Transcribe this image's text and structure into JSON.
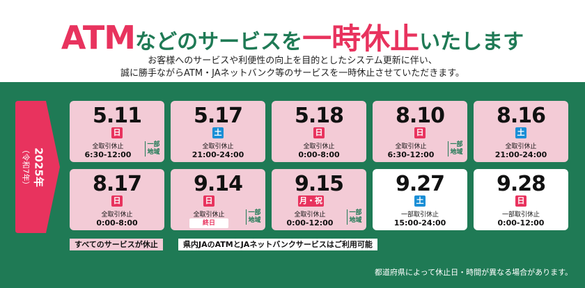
{
  "headline": {
    "atm": "ATM",
    "mid": "などのサービスを",
    "stop": "一時休止",
    "end": "いたします"
  },
  "subtext": {
    "line1": "お客様へのサービスや利便性の向上を目的としたシステム更新に伴い、",
    "line2": "誠に勝手ながらATM・JAネットバンク等のサービスを一時休止させていただきます。"
  },
  "year": {
    "main": "2025年",
    "era": "（令和7年）"
  },
  "colors": {
    "brand_pink": "#e8335e",
    "brand_green": "#1f7a55",
    "card_pink": "#f3cbd6",
    "saturday_blue": "#1b8fd6"
  },
  "cards": [
    {
      "date": "5.11",
      "dow": "日",
      "status": "全取引休止",
      "time": "6:30-12:00",
      "note": "一部地域"
    },
    {
      "date": "5.17",
      "dow": "土",
      "status": "全取引休止",
      "time": "21:00-24:00"
    },
    {
      "date": "5.18",
      "dow": "日",
      "status": "全取引休止",
      "time": "0:00-8:00"
    },
    {
      "date": "8.10",
      "dow": "日",
      "status": "全取引休止",
      "time": "6:30-12:00",
      "note": "一部地域"
    },
    {
      "date": "8.16",
      "dow": "土",
      "status": "全取引休止",
      "time": "21:00-24:00"
    },
    {
      "date": "8.17",
      "dow": "日",
      "status": "全取引休止",
      "time": "0:00-8:00"
    },
    {
      "date": "9.14",
      "dow": "日",
      "status": "全取引休止",
      "time": "終日",
      "note": "一部地域"
    },
    {
      "date": "9.15",
      "dow": "月・祝",
      "status": "全取引休止",
      "time": "0:00-12:00",
      "note": "一部地域"
    },
    {
      "date": "9.27",
      "dow": "土",
      "status": "一部取引休止",
      "time": "15:00-24:00"
    },
    {
      "date": "9.28",
      "dow": "日",
      "status": "一部取引休止",
      "time": "0:00-12:00"
    }
  ],
  "legend": {
    "all_services": "すべてのサービスが休止",
    "partial_services": "県内JAのATMとJAネットバンクサービスはご利用可能"
  },
  "footnote": "都道府県によって休止日・時間が異なる場合があります。"
}
